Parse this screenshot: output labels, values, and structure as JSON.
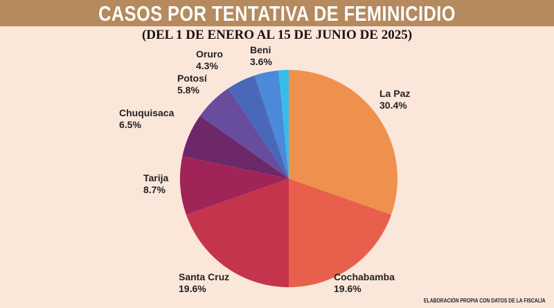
{
  "header": {
    "title": "CASOS POR TENTATIVA DE FEMINICIDIO",
    "subtitle": "(DEL 1 DE ENERO AL 15 DE JUNIO DE 2025)"
  },
  "footer": {
    "source": "ELABORACIÓN PROPIA CON DATOS DE LA FISCALÍA"
  },
  "chart_data": {
    "type": "pie",
    "title": "CASOS POR TENTATIVA DE FEMINICIDIO",
    "subtitle": "(DEL 1 DE ENERO AL 15 DE JUNIO DE 2025)",
    "slices": [
      {
        "label": "La Paz",
        "value": 30.4,
        "text": "30.4%",
        "color": "#f0904e"
      },
      {
        "label": "Cochabamba",
        "value": 19.6,
        "text": "19.6%",
        "color": "#e8604c"
      },
      {
        "label": "Santa Cruz",
        "value": 19.6,
        "text": "19.6%",
        "color": "#c4344c"
      },
      {
        "label": "Tarija",
        "value": 8.7,
        "text": "8.7%",
        "color": "#a02458"
      },
      {
        "label": "Chuquisaca",
        "value": 6.5,
        "text": "6.5%",
        "color": "#6c2868"
      },
      {
        "label": "Potosí",
        "value": 5.8,
        "text": "5.8%",
        "color": "#684c9e"
      },
      {
        "label": "Oruro",
        "value": 4.3,
        "text": "4.3%",
        "color": "#4a68ba"
      },
      {
        "label": "Beni",
        "value": 3.6,
        "text": "3.6%",
        "color": "#4a8ad8"
      },
      {
        "label": "",
        "value": 1.5,
        "text": "",
        "color": "#36bdea"
      }
    ]
  }
}
